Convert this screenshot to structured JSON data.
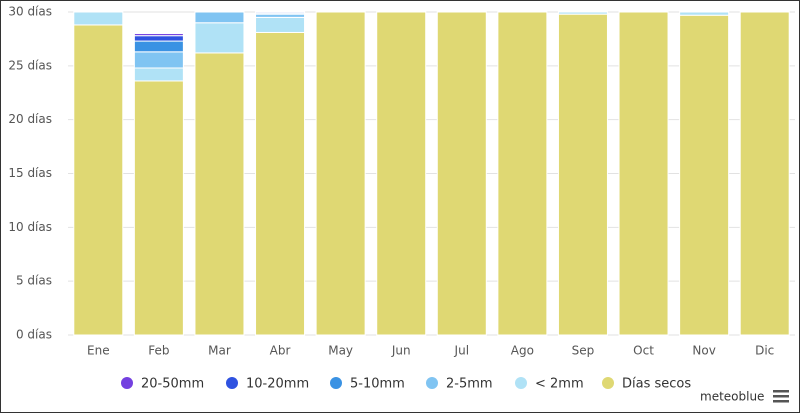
{
  "chart_data": {
    "type": "stacked_bar",
    "categories": [
      "Ene",
      "Feb",
      "Mar",
      "Abr",
      "May",
      "Jun",
      "Jul",
      "Ago",
      "Sep",
      "Oct",
      "Nov",
      "Dic"
    ],
    "series": [
      {
        "name": "20-50mm",
        "color": "#7440e0",
        "values": [
          0,
          0.2,
          0,
          0,
          0,
          0,
          0,
          0,
          0,
          0,
          0,
          0
        ]
      },
      {
        "name": "10-20mm",
        "color": "#2f52e0",
        "values": [
          0,
          0.5,
          0,
          0.1,
          0,
          0,
          0,
          0,
          0,
          0,
          0,
          0
        ]
      },
      {
        "name": "5-10mm",
        "color": "#3a92e3",
        "values": [
          0,
          1.0,
          0,
          0.1,
          0,
          0,
          0,
          0,
          0,
          0,
          0,
          0
        ]
      },
      {
        "name": "2-5mm",
        "color": "#80c4f2",
        "values": [
          0,
          1.5,
          1.0,
          0.3,
          0,
          0,
          0,
          0,
          0,
          0,
          0,
          0
        ]
      },
      {
        "name": "< 2mm",
        "color": "#b0e2f6",
        "values": [
          1.2,
          1.2,
          2.8,
          1.4,
          0,
          0,
          0,
          0,
          0.2,
          0,
          0.3,
          0
        ]
      },
      {
        "name": "Días secos",
        "color": "#dfd873",
        "values": [
          28.8,
          23.6,
          26.2,
          28.1,
          30,
          30,
          30,
          30,
          29.8,
          30,
          29.7,
          30
        ]
      }
    ],
    "ylim": [
      0,
      30
    ],
    "yticks": [
      {
        "value": 0,
        "label": "0 días"
      },
      {
        "value": 5,
        "label": "5 días"
      },
      {
        "value": 10,
        "label": "10 días"
      },
      {
        "value": 15,
        "label": "15 días"
      },
      {
        "value": 20,
        "label": "20 días"
      },
      {
        "value": 25,
        "label": "25 días"
      },
      {
        "value": 30,
        "label": "30 días"
      }
    ],
    "grid": true,
    "credit": "meteoblue"
  }
}
